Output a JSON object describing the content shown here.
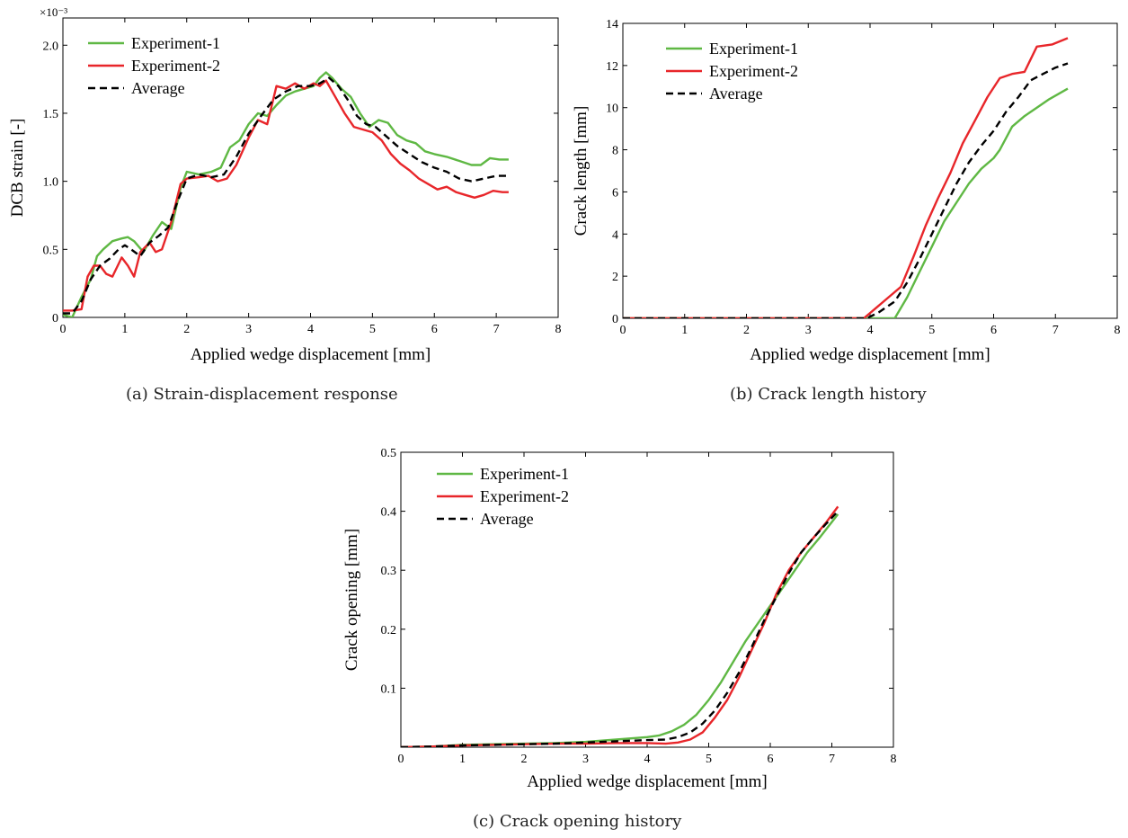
{
  "chart_data": [
    {
      "type": "line",
      "caption": "(a) Strain-displacement response",
      "xlabel": "Applied wedge displacement   [mm]",
      "ylabel": "DCB strain  [-]",
      "exponent_label": "×10⁻³",
      "xlim": [
        0,
        8
      ],
      "ylim": [
        0,
        2.2
      ],
      "xticks": [
        "0",
        "1",
        "2",
        "3",
        "4",
        "5",
        "6",
        "7",
        "8"
      ],
      "yticks": [
        "0",
        "0.5",
        "1.0",
        "1.5",
        "2.0"
      ],
      "ytick_values": [
        0,
        0.5,
        1.0,
        1.5,
        2.0
      ],
      "grid": false,
      "legend": "top-left",
      "series": [
        {
          "name": "Experiment-1",
          "color": "#5fb844",
          "dash": "solid",
          "x": [
            0,
            0.15,
            0.3,
            0.45,
            0.55,
            0.65,
            0.8,
            0.95,
            1.05,
            1.15,
            1.3,
            1.45,
            1.6,
            1.75,
            1.9,
            2.0,
            2.2,
            2.4,
            2.55,
            2.7,
            2.85,
            3.0,
            3.15,
            3.3,
            3.45,
            3.6,
            3.75,
            3.9,
            4.05,
            4.15,
            4.25,
            4.35,
            4.5,
            4.65,
            4.8,
            4.95,
            5.1,
            5.25,
            5.4,
            5.55,
            5.7,
            5.85,
            6.0,
            6.2,
            6.4,
            6.6,
            6.75,
            6.9,
            7.05,
            7.2
          ],
          "y": [
            0.02,
            0.0,
            0.15,
            0.28,
            0.45,
            0.5,
            0.56,
            0.58,
            0.59,
            0.56,
            0.48,
            0.6,
            0.7,
            0.65,
            0.95,
            1.07,
            1.05,
            1.07,
            1.1,
            1.25,
            1.3,
            1.42,
            1.5,
            1.48,
            1.56,
            1.63,
            1.66,
            1.68,
            1.7,
            1.76,
            1.8,
            1.76,
            1.68,
            1.62,
            1.5,
            1.4,
            1.45,
            1.43,
            1.34,
            1.3,
            1.28,
            1.22,
            1.2,
            1.18,
            1.15,
            1.12,
            1.12,
            1.17,
            1.16,
            1.16
          ]
        },
        {
          "name": "Experiment-2",
          "color": "#e8262a",
          "dash": "solid",
          "x": [
            0,
            0.15,
            0.3,
            0.4,
            0.5,
            0.6,
            0.7,
            0.8,
            0.95,
            1.05,
            1.15,
            1.25,
            1.4,
            1.5,
            1.6,
            1.75,
            1.9,
            2.0,
            2.2,
            2.35,
            2.5,
            2.65,
            2.8,
            3.0,
            3.15,
            3.3,
            3.45,
            3.6,
            3.75,
            3.9,
            4.05,
            4.15,
            4.25,
            4.4,
            4.55,
            4.7,
            4.85,
            5.0,
            5.15,
            5.3,
            5.45,
            5.6,
            5.75,
            5.9,
            6.05,
            6.2,
            6.35,
            6.5,
            6.65,
            6.8,
            6.95,
            7.1,
            7.2
          ],
          "y": [
            0.05,
            0.05,
            0.06,
            0.3,
            0.38,
            0.38,
            0.32,
            0.3,
            0.44,
            0.38,
            0.3,
            0.48,
            0.55,
            0.48,
            0.5,
            0.7,
            0.98,
            1.02,
            1.03,
            1.04,
            1.0,
            1.02,
            1.12,
            1.32,
            1.45,
            1.42,
            1.7,
            1.68,
            1.72,
            1.68,
            1.72,
            1.7,
            1.74,
            1.62,
            1.5,
            1.4,
            1.38,
            1.36,
            1.3,
            1.2,
            1.13,
            1.08,
            1.02,
            0.98,
            0.94,
            0.96,
            0.92,
            0.9,
            0.88,
            0.9,
            0.93,
            0.92,
            0.92
          ]
        },
        {
          "name": "Average",
          "color": "#000000",
          "dash": "dashed",
          "x": [
            0,
            0.15,
            0.3,
            0.45,
            0.6,
            0.75,
            0.9,
            1.0,
            1.1,
            1.25,
            1.4,
            1.55,
            1.7,
            1.85,
            2.0,
            2.2,
            2.4,
            2.6,
            2.8,
            3.0,
            3.2,
            3.4,
            3.6,
            3.8,
            4.0,
            4.15,
            4.3,
            4.45,
            4.6,
            4.75,
            4.9,
            5.05,
            5.2,
            5.4,
            5.6,
            5.8,
            6.0,
            6.2,
            6.4,
            6.6,
            6.8,
            7.0,
            7.2
          ],
          "y": [
            0.03,
            0.03,
            0.12,
            0.28,
            0.38,
            0.43,
            0.5,
            0.53,
            0.5,
            0.45,
            0.55,
            0.6,
            0.66,
            0.85,
            1.02,
            1.05,
            1.03,
            1.05,
            1.18,
            1.35,
            1.48,
            1.6,
            1.66,
            1.7,
            1.7,
            1.72,
            1.76,
            1.7,
            1.6,
            1.48,
            1.42,
            1.4,
            1.34,
            1.26,
            1.2,
            1.14,
            1.1,
            1.07,
            1.02,
            1.0,
            1.02,
            1.04,
            1.04
          ]
        }
      ]
    },
    {
      "type": "line",
      "caption": "(b) Crack length history",
      "xlabel": "Applied wedge displacement   [mm]",
      "ylabel": "Crack length   [mm]",
      "xlim": [
        0,
        8
      ],
      "ylim": [
        0,
        14
      ],
      "xticks": [
        "0",
        "1",
        "2",
        "3",
        "4",
        "5",
        "6",
        "7",
        "8"
      ],
      "yticks": [
        "0",
        "2",
        "4",
        "6",
        "8",
        "10",
        "12",
        "14"
      ],
      "ytick_values": [
        0,
        2,
        4,
        6,
        8,
        10,
        12,
        14
      ],
      "grid": false,
      "legend": "top-left",
      "series": [
        {
          "name": "Experiment-1",
          "color": "#5fb844",
          "dash": "solid",
          "x": [
            0,
            4.4,
            4.6,
            4.8,
            5.0,
            5.2,
            5.4,
            5.6,
            5.8,
            6.0,
            6.1,
            6.3,
            6.5,
            6.7,
            6.9,
            7.2
          ],
          "y": [
            0,
            0,
            1.0,
            2.2,
            3.4,
            4.6,
            5.5,
            6.4,
            7.1,
            7.6,
            8.0,
            9.1,
            9.6,
            10.0,
            10.4,
            10.9
          ]
        },
        {
          "name": "Experiment-2",
          "color": "#e8262a",
          "dash": "solid",
          "x": [
            0,
            3.9,
            4.1,
            4.3,
            4.5,
            4.7,
            4.9,
            5.1,
            5.3,
            5.5,
            5.7,
            5.9,
            6.1,
            6.3,
            6.5,
            6.7,
            6.95,
            7.2
          ],
          "y": [
            0,
            0,
            0.5,
            1.0,
            1.5,
            2.9,
            4.4,
            5.7,
            6.9,
            8.3,
            9.4,
            10.5,
            11.4,
            11.6,
            11.7,
            12.9,
            13.0,
            13.3
          ]
        },
        {
          "name": "Average",
          "color": "#000000",
          "dash": "dashed",
          "x": [
            0,
            3.95,
            4.15,
            4.4,
            4.6,
            4.8,
            5.0,
            5.2,
            5.4,
            5.6,
            5.8,
            6.0,
            6.2,
            6.4,
            6.6,
            6.8,
            7.0,
            7.2
          ],
          "y": [
            0,
            0,
            0.3,
            0.8,
            1.7,
            2.8,
            4.0,
            5.2,
            6.4,
            7.4,
            8.2,
            8.9,
            9.8,
            10.5,
            11.3,
            11.6,
            11.9,
            12.1
          ]
        }
      ]
    },
    {
      "type": "line",
      "caption": "(c) Crack opening history",
      "xlabel": "Applied wedge displacement   [mm]",
      "ylabel": "Crack opening  [mm]",
      "xlim": [
        0,
        8
      ],
      "ylim": [
        0,
        0.5
      ],
      "xticks": [
        "0",
        "1",
        "2",
        "3",
        "4",
        "5",
        "6",
        "7",
        "8"
      ],
      "yticks": [
        "0.1",
        "0.2",
        "0.3",
        "0.4",
        "0.5"
      ],
      "ytick_values": [
        0.1,
        0.2,
        0.3,
        0.4,
        0.5
      ],
      "grid": false,
      "legend": "top-left",
      "series": [
        {
          "name": "Experiment-1",
          "color": "#5fb844",
          "dash": "solid",
          "x": [
            0,
            0.5,
            1.0,
            1.5,
            2.0,
            2.5,
            3.0,
            3.5,
            4.0,
            4.2,
            4.4,
            4.6,
            4.8,
            5.0,
            5.2,
            5.4,
            5.6,
            5.8,
            6.0,
            6.2,
            6.4,
            6.6,
            6.8,
            7.1
          ],
          "y": [
            0,
            0.001,
            0.004,
            0.005,
            0.006,
            0.007,
            0.009,
            0.013,
            0.017,
            0.02,
            0.027,
            0.038,
            0.055,
            0.08,
            0.11,
            0.145,
            0.18,
            0.21,
            0.24,
            0.27,
            0.3,
            0.33,
            0.355,
            0.395
          ]
        },
        {
          "name": "Experiment-2",
          "color": "#e8262a",
          "dash": "solid",
          "x": [
            0,
            0.5,
            1.0,
            1.5,
            2.0,
            2.5,
            3.0,
            3.5,
            4.0,
            4.3,
            4.5,
            4.7,
            4.9,
            5.1,
            5.3,
            5.5,
            5.7,
            5.9,
            6.1,
            6.3,
            6.5,
            6.7,
            6.9,
            7.1
          ],
          "y": [
            0,
            0.001,
            0.003,
            0.004,
            0.005,
            0.006,
            0.006,
            0.007,
            0.007,
            0.006,
            0.008,
            0.013,
            0.025,
            0.05,
            0.08,
            0.12,
            0.165,
            0.21,
            0.26,
            0.3,
            0.33,
            0.355,
            0.38,
            0.408
          ]
        },
        {
          "name": "Average",
          "color": "#000000",
          "dash": "dashed",
          "x": [
            0,
            0.5,
            1.0,
            1.5,
            2.0,
            2.5,
            3.0,
            3.5,
            4.0,
            4.3,
            4.5,
            4.7,
            4.9,
            5.1,
            5.3,
            5.5,
            5.7,
            5.9,
            6.1,
            6.3,
            6.5,
            6.7,
            6.9,
            7.1
          ],
          "y": [
            0,
            0.001,
            0.003,
            0.004,
            0.005,
            0.006,
            0.008,
            0.01,
            0.012,
            0.013,
            0.017,
            0.025,
            0.04,
            0.062,
            0.092,
            0.128,
            0.17,
            0.215,
            0.255,
            0.295,
            0.33,
            0.355,
            0.378,
            0.4
          ]
        }
      ]
    }
  ]
}
